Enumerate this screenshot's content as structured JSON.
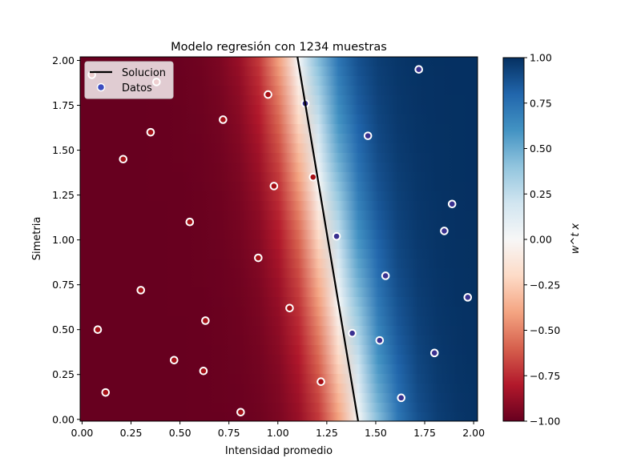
{
  "chart_data": {
    "type": "scatter",
    "title": "Modelo regresión con 1234 muestras",
    "xlabel": "Intensidad promedio",
    "ylabel": "Simetria",
    "xlim": [
      -0.01,
      2.02
    ],
    "ylim": [
      -0.01,
      2.02
    ],
    "xticks": [
      "0.00",
      "0.25",
      "0.50",
      "0.75",
      "1.00",
      "1.25",
      "1.50",
      "1.75",
      "2.00"
    ],
    "yticks": [
      "0.00",
      "0.25",
      "0.50",
      "0.75",
      "1.00",
      "1.25",
      "1.50",
      "1.75",
      "2.00"
    ],
    "n_samples": 1234,
    "legend": {
      "location": "upper-left",
      "entries": [
        {
          "label": "Solucion",
          "kind": "line",
          "color": "#000000"
        },
        {
          "label": "Datos",
          "kind": "marker",
          "color": "#3b4cc0"
        }
      ]
    },
    "solution_line": {
      "label": "Solucion",
      "points": [
        [
          1.1,
          2.02
        ],
        [
          1.41,
          -0.01
        ]
      ],
      "color": "#000000"
    },
    "decision_field": {
      "label": "w^t x",
      "colormap": "RdBu",
      "range": [
        -1,
        1
      ],
      "boundary_x_at_top": 1.1,
      "boundary_x_at_bottom": 1.41,
      "transition_width": 0.45
    },
    "colorbar": {
      "label": "w^t x",
      "ticks": [
        "1.00",
        "0.75",
        "0.50",
        "0.25",
        "0.00",
        "−0.25",
        "−0.50",
        "−0.75",
        "−1.00"
      ],
      "colors": [
        "#67001f",
        "#b2182b",
        "#d6604d",
        "#f4a582",
        "#fddbc7",
        "#f7f7f7",
        "#d1e5f0",
        "#92c5de",
        "#4393c3",
        "#2166ac",
        "#053061"
      ]
    },
    "class_colors": {
      "negative": "#a50f15",
      "positive": "#3a3190"
    },
    "sample_points": {
      "x": [
        0.05,
        0.12,
        0.21,
        0.3,
        0.38,
        0.47,
        0.55,
        0.63,
        0.72,
        0.81,
        0.9,
        0.98,
        1.06,
        1.14,
        1.22,
        1.3,
        1.38,
        1.46,
        1.55,
        1.63,
        1.72,
        1.8,
        1.89,
        1.97,
        0.08,
        0.35,
        0.62,
        0.95,
        1.18,
        1.52,
        1.85
      ],
      "y": [
        1.92,
        0.15,
        1.45,
        0.72,
        1.88,
        0.33,
        1.1,
        0.55,
        1.67,
        0.04,
        0.9,
        1.3,
        0.62,
        1.76,
        0.21,
        1.02,
        0.48,
        1.58,
        0.8,
        0.12,
        1.95,
        0.37,
        1.2,
        0.68,
        0.5,
        1.6,
        0.27,
        1.81,
        1.35,
        0.44,
        1.05
      ]
    }
  }
}
